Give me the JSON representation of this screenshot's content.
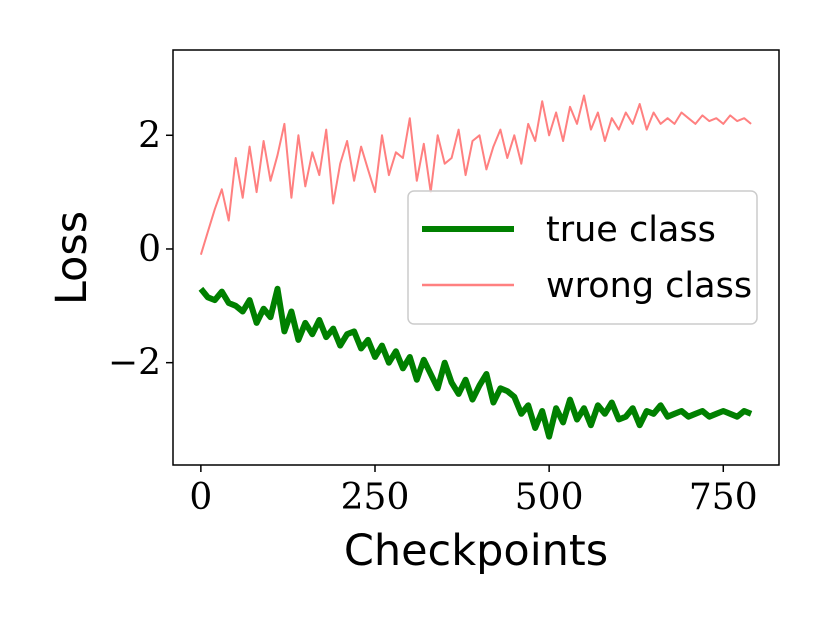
{
  "chart_data": {
    "type": "line",
    "title": "",
    "xlabel": "Checkpoints",
    "ylabel": "Loss",
    "xlim": [
      -40,
      830
    ],
    "ylim": [
      -3.8,
      3.5
    ],
    "xticks": [
      0,
      250,
      500,
      750
    ],
    "xtick_labels": [
      "0",
      "250",
      "500",
      "750"
    ],
    "yticks": [
      -2,
      0,
      2
    ],
    "ytick_labels": [
      "−2",
      "0",
      "2"
    ],
    "grid": false,
    "legend_position": "center-right",
    "series": [
      {
        "name": "true class",
        "color": "#008000",
        "line": "thick",
        "x": [
          0,
          10,
          20,
          30,
          40,
          50,
          60,
          70,
          80,
          90,
          100,
          110,
          120,
          130,
          140,
          150,
          160,
          170,
          180,
          190,
          200,
          210,
          220,
          230,
          240,
          250,
          260,
          270,
          280,
          290,
          300,
          310,
          320,
          330,
          340,
          350,
          360,
          370,
          380,
          390,
          400,
          410,
          420,
          430,
          440,
          450,
          460,
          470,
          480,
          490,
          500,
          510,
          520,
          530,
          540,
          550,
          560,
          570,
          580,
          590,
          600,
          610,
          620,
          630,
          640,
          650,
          660,
          670,
          680,
          690,
          700,
          710,
          720,
          730,
          740,
          750,
          760,
          770,
          780,
          790
        ],
        "y": [
          -0.7,
          -0.85,
          -0.9,
          -0.75,
          -0.95,
          -1.0,
          -1.1,
          -0.9,
          -1.3,
          -1.05,
          -1.2,
          -0.7,
          -1.45,
          -1.1,
          -1.6,
          -1.3,
          -1.5,
          -1.25,
          -1.55,
          -1.4,
          -1.7,
          -1.5,
          -1.45,
          -1.75,
          -1.6,
          -1.9,
          -1.7,
          -2.0,
          -1.8,
          -2.1,
          -1.9,
          -2.3,
          -1.95,
          -2.2,
          -2.45,
          -2.0,
          -2.35,
          -2.55,
          -2.3,
          -2.65,
          -2.4,
          -2.2,
          -2.7,
          -2.45,
          -2.5,
          -2.6,
          -2.9,
          -2.75,
          -3.15,
          -2.85,
          -3.3,
          -2.8,
          -3.05,
          -2.65,
          -3.0,
          -2.8,
          -3.1,
          -2.75,
          -2.9,
          -2.7,
          -3.0,
          -2.95,
          -2.8,
          -3.1,
          -2.85,
          -2.9,
          -2.75,
          -2.95,
          -2.9,
          -2.85,
          -2.95,
          -2.9,
          -2.85,
          -2.95,
          -2.9,
          -2.85,
          -2.9,
          -2.95,
          -2.85,
          -2.9
        ]
      },
      {
        "name": "wrong class",
        "color": "#ff8080",
        "line": "thin",
        "x": [
          0,
          10,
          20,
          30,
          40,
          50,
          60,
          70,
          80,
          90,
          100,
          110,
          120,
          130,
          140,
          150,
          160,
          170,
          180,
          190,
          200,
          210,
          220,
          230,
          240,
          250,
          260,
          270,
          280,
          290,
          300,
          310,
          320,
          330,
          340,
          350,
          360,
          370,
          380,
          390,
          400,
          410,
          420,
          430,
          440,
          450,
          460,
          470,
          480,
          490,
          500,
          510,
          520,
          530,
          540,
          550,
          560,
          570,
          580,
          590,
          600,
          610,
          620,
          630,
          640,
          650,
          660,
          670,
          680,
          690,
          700,
          710,
          720,
          730,
          740,
          750,
          760,
          770,
          780,
          790
        ],
        "y": [
          -0.1,
          0.3,
          0.7,
          1.05,
          0.5,
          1.6,
          0.9,
          1.8,
          1.0,
          1.9,
          1.2,
          1.65,
          2.2,
          0.9,
          2.0,
          1.1,
          1.7,
          1.3,
          2.1,
          0.8,
          1.5,
          1.9,
          1.2,
          1.8,
          1.4,
          1.0,
          2.0,
          1.3,
          1.7,
          1.6,
          2.3,
          1.2,
          1.85,
          1.0,
          2.0,
          1.5,
          1.6,
          2.1,
          1.3,
          1.9,
          2.0,
          1.4,
          1.8,
          2.1,
          1.6,
          2.0,
          1.5,
          2.2,
          1.9,
          2.6,
          2.0,
          2.4,
          1.9,
          2.5,
          2.2,
          2.7,
          2.1,
          2.4,
          1.9,
          2.3,
          2.1,
          2.4,
          2.2,
          2.55,
          2.1,
          2.4,
          2.2,
          2.3,
          2.2,
          2.4,
          2.3,
          2.2,
          2.35,
          2.25,
          2.3,
          2.2,
          2.35,
          2.25,
          2.3,
          2.2
        ]
      }
    ]
  }
}
